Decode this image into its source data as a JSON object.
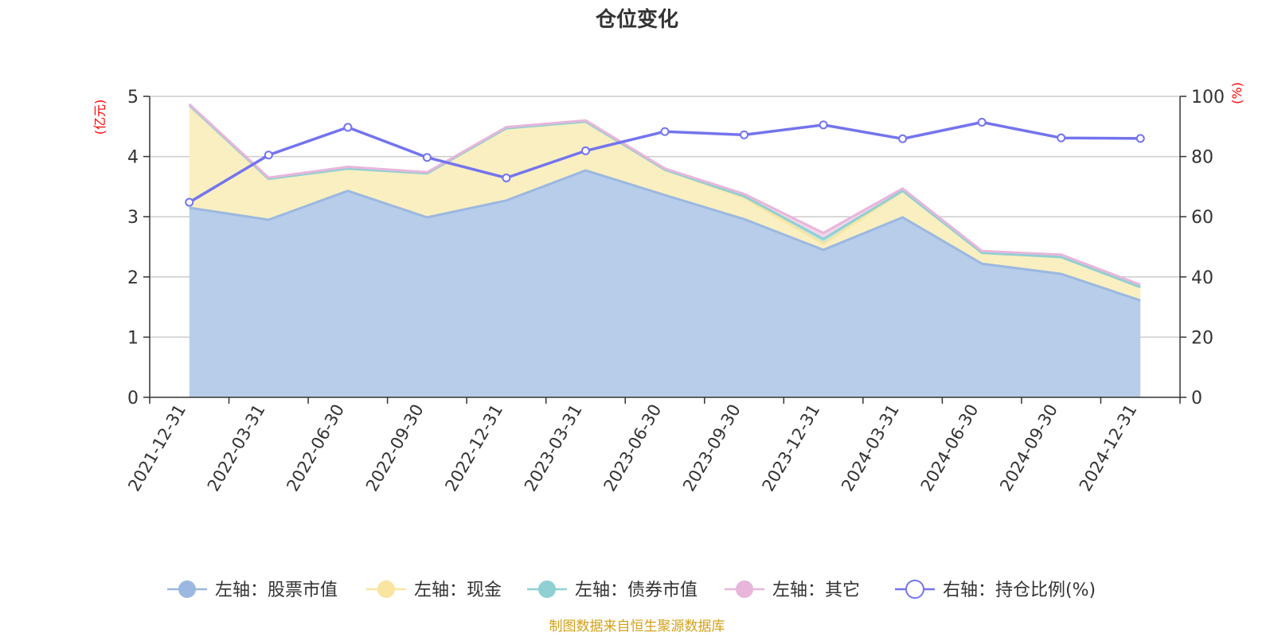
{
  "chart_data": {
    "type": "area",
    "title": "仓位变化",
    "categories": [
      "2021-12-31",
      "2022-03-31",
      "2022-06-30",
      "2022-09-30",
      "2022-12-31",
      "2023-03-31",
      "2023-06-30",
      "2023-09-30",
      "2023-12-31",
      "2024-03-31",
      "2024-06-30",
      "2024-09-30",
      "2024-12-31"
    ],
    "left_axis": {
      "unit": "(亿元)",
      "min": 0,
      "max": 5,
      "ticks": [
        "0",
        "1",
        "2",
        "3",
        "4",
        "5"
      ]
    },
    "right_axis": {
      "unit": "(%)",
      "min": 0,
      "max": 100,
      "ticks": [
        "0",
        "20",
        "40",
        "60",
        "80",
        "100"
      ]
    },
    "stacked": true,
    "series": [
      {
        "name": "左轴：股票市值",
        "axis": "left",
        "color": "#9bb8e0",
        "fill": "#b7cdea",
        "values": [
          3.15,
          2.95,
          3.43,
          2.99,
          3.27,
          3.77,
          3.36,
          2.96,
          2.45,
          2.99,
          2.22,
          2.05,
          1.61
        ]
      },
      {
        "name": "左轴：现金",
        "axis": "left",
        "color": "#f9e4a0",
        "fill": "#faefc1",
        "values": [
          1.7,
          0.68,
          0.37,
          0.73,
          1.2,
          0.81,
          0.42,
          0.36,
          0.1,
          0.44,
          0.18,
          0.28,
          0.22
        ]
      },
      {
        "name": "左轴：债券市值",
        "axis": "left",
        "color": "#8fd0d3",
        "fill": "#bfe5e6",
        "values": [
          0,
          0,
          0,
          0,
          0,
          0,
          0,
          0.02,
          0.08,
          0,
          0,
          0,
          0
        ]
      },
      {
        "name": "左轴：其它",
        "axis": "left",
        "color": "#e8b6da",
        "fill": "#f3d5ea",
        "values": [
          0.02,
          0.02,
          0.03,
          0.02,
          0.02,
          0.02,
          0.02,
          0.04,
          0.1,
          0.04,
          0.03,
          0.04,
          0.04
        ]
      },
      {
        "name": "右轴：持仓比例(%)",
        "axis": "right",
        "color": "#7474ee",
        "type": "line",
        "values": [
          64.8,
          80.5,
          89.7,
          79.7,
          72.9,
          81.9,
          88.3,
          87.2,
          90.5,
          85.9,
          91.4,
          86.2,
          86.0
        ]
      }
    ],
    "source_text": "制图数据来自恒生聚源数据库",
    "source_color": "#d4a017",
    "grid": true,
    "legend_position": "bottom"
  }
}
